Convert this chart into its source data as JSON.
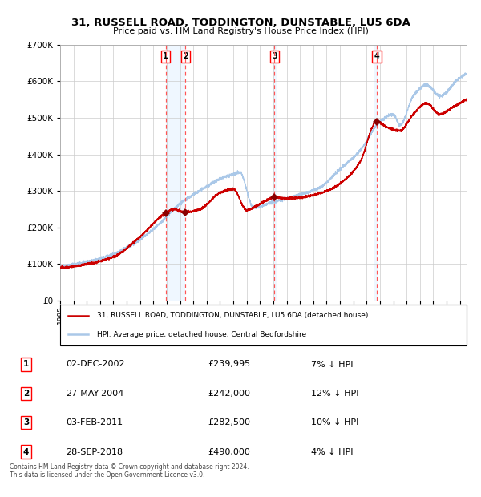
{
  "title_line1": "31, RUSSELL ROAD, TODDINGTON, DUNSTABLE, LU5 6DA",
  "title_line2": "Price paid vs. HM Land Registry's House Price Index (HPI)",
  "legend_line1": "31, RUSSELL ROAD, TODDINGTON, DUNSTABLE, LU5 6DA (detached house)",
  "legend_line2": "HPI: Average price, detached house, Central Bedfordshire",
  "footer": "Contains HM Land Registry data © Crown copyright and database right 2024.\nThis data is licensed under the Open Government Licence v3.0.",
  "transactions": [
    {
      "num": 1,
      "date": "02-DEC-2002",
      "price": "£239,995",
      "pct": "7% ↓ HPI",
      "x_year": 2002.92
    },
    {
      "num": 2,
      "date": "27-MAY-2004",
      "price": "£242,000",
      "pct": "12% ↓ HPI",
      "x_year": 2004.41
    },
    {
      "num": 3,
      "date": "03-FEB-2011",
      "price": "£282,500",
      "pct": "10% ↓ HPI",
      "x_year": 2011.09
    },
    {
      "num": 4,
      "date": "28-SEP-2018",
      "price": "£490,000",
      "pct": "4% ↓ HPI",
      "x_year": 2018.75
    }
  ],
  "sale_prices": [
    239995,
    242000,
    282500,
    490000
  ],
  "hpi_color": "#aac8e8",
  "price_color": "#cc0000",
  "marker_color": "#8b0000",
  "vline_color": "#ff5555",
  "shade_color": "#ddeeff",
  "grid_color": "#cccccc",
  "background_color": "#ffffff",
  "ylim": [
    0,
    700000
  ],
  "yticks": [
    0,
    100000,
    200000,
    300000,
    400000,
    500000,
    600000,
    700000
  ],
  "xlim_start": 1995.0,
  "xlim_end": 2025.5
}
